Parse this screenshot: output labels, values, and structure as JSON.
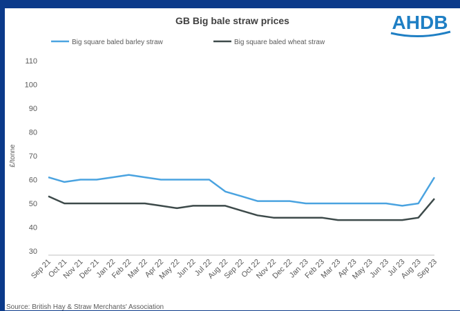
{
  "branding": {
    "logo_text": "AHDB",
    "logo_color": "#1f7fc4"
  },
  "source_note": "Source: British Hay & Straw Merchants' Association",
  "chart_data": {
    "type": "line",
    "title": "GB Big bale straw prices",
    "ylabel": "£/tonne",
    "xlabel": "",
    "ylim": [
      30,
      110
    ],
    "yticks": [
      30,
      40,
      50,
      60,
      70,
      80,
      90,
      100,
      110
    ],
    "grid": false,
    "legend": "top",
    "categories": [
      "Sep 21",
      "Oct 21",
      "Nov 21",
      "Dec 21",
      "Jan 22",
      "Feb 22",
      "Mar 22",
      "Apr 22",
      "May 22",
      "Jun 22",
      "Jul 22",
      "Aug 22",
      "Sep 22",
      "Oct 22",
      "Nov 22",
      "Dec 22",
      "Jan 23",
      "Feb 23",
      "Mar 23",
      "Apr 23",
      "May 23",
      "Jun 23",
      "Jul 23",
      "Aug 23",
      "Sep 23"
    ],
    "series": [
      {
        "name": "Big square baled barley straw",
        "color": "#4aa3e0",
        "values": [
          61,
          59,
          60,
          60,
          61,
          62,
          61,
          60,
          60,
          60,
          60,
          55,
          53,
          51,
          51,
          51,
          50,
          50,
          50,
          50,
          50,
          50,
          49,
          50,
          61
        ]
      },
      {
        "name": "Big square baled wheat straw",
        "color": "#3d4a4a",
        "values": [
          53,
          50,
          50,
          50,
          50,
          50,
          50,
          49,
          48,
          49,
          49,
          49,
          47,
          45,
          44,
          44,
          44,
          44,
          43,
          43,
          43,
          43,
          43,
          44,
          52
        ]
      }
    ]
  }
}
